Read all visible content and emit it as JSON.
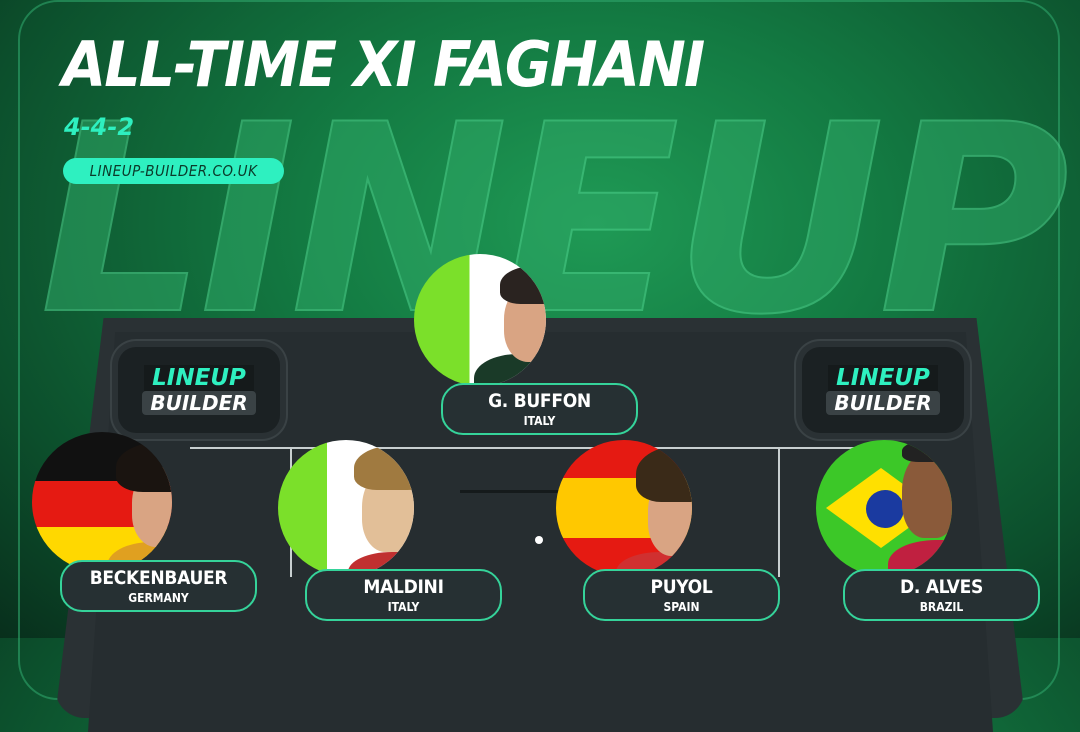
{
  "title": "ALL-TIME XI FAGHANI",
  "formation": "4-4-2",
  "website": "LINEUP-BUILDER.CO.UK",
  "background_word": "LINEUP",
  "logo": {
    "line1": "LINEUP",
    "line2": "BUILDER"
  },
  "colors": {
    "accent": "#2ef0c0",
    "background": "#137a42",
    "pitch": "#2a3134"
  },
  "players": [
    {
      "name": "G. BUFFON",
      "country": "ITALY"
    },
    {
      "name": "BECKENBAUER",
      "country": "GERMANY"
    },
    {
      "name": "MALDINI",
      "country": "ITALY"
    },
    {
      "name": "PUYOL",
      "country": "SPAIN"
    },
    {
      "name": "D. ALVES",
      "country": "BRAZIL"
    }
  ]
}
